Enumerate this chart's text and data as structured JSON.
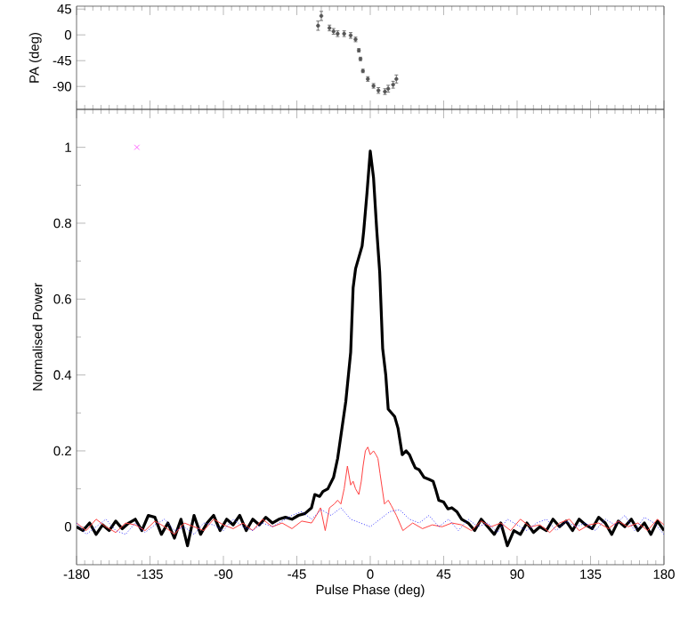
{
  "chart_data": [
    {
      "type": "scatter",
      "ylabel": "PA (deg)",
      "xlim": [
        -180,
        180
      ],
      "ylim": [
        -130,
        50
      ],
      "yticks": [
        -90,
        -45,
        0,
        45
      ],
      "tick_labels": "y",
      "series": [
        {
          "color": "#555555",
          "x": [
            -32,
            -30,
            -25,
            -22.5,
            -20,
            -16,
            -12,
            -9,
            -7,
            -6,
            -4.5,
            -1.5,
            2,
            5,
            9,
            11,
            14,
            16
          ],
          "values": [
            16,
            33,
            12,
            6,
            2,
            2,
            -1,
            -8,
            -27,
            -42,
            -63,
            -77,
            -89,
            -97,
            -99,
            -94,
            -87,
            -77
          ],
          "errors": [
            8,
            8,
            5,
            5,
            5,
            5,
            5,
            4,
            3,
            3,
            3,
            4,
            4,
            5,
            5,
            6,
            6,
            7
          ]
        }
      ]
    },
    {
      "type": "line",
      "xlabel": "Pulse Phase (deg)",
      "ylabel": "Normalised Power",
      "xlim": [
        -180,
        180
      ],
      "xticks": [
        -180,
        -135,
        -90,
        -45,
        0,
        45,
        90,
        135,
        180
      ],
      "ylim": [
        -0.1,
        1.1
      ],
      "yticks": [
        0,
        0.2,
        0.4,
        0.6,
        0.8,
        1
      ],
      "series": [
        {
          "color": "#000000",
          "x": [
            -180,
            -176,
            -172,
            -168,
            -164,
            -160,
            -156,
            -152,
            -148,
            -144,
            -140,
            -136,
            -132,
            -128,
            -124,
            -120,
            -116,
            -112,
            -108,
            -104,
            -100,
            -96,
            -92,
            -88,
            -84,
            -80,
            -76,
            -72,
            -68,
            -64,
            -60,
            -56,
            -52,
            -48,
            -44,
            -40,
            -36,
            -34,
            -31,
            -29,
            -26,
            -22.5,
            -20,
            -18,
            -15,
            -12,
            -10.5,
            -9,
            -7,
            -5,
            -4,
            -2,
            0,
            2,
            4,
            5.8,
            7.6,
            9.5,
            11,
            13,
            15,
            17,
            19.6,
            22,
            24,
            26,
            27.6,
            30,
            33,
            36,
            38.5,
            40,
            42,
            45,
            47.6,
            50,
            53,
            56,
            60,
            64,
            68,
            72,
            76,
            80,
            84,
            88,
            92,
            96,
            100,
            104,
            108,
            112,
            116,
            120,
            124,
            128,
            132,
            136,
            140,
            144,
            148,
            152,
            156,
            160,
            164,
            168,
            172,
            176,
            180
          ],
          "values": [
            0,
            -0.01,
            0.01,
            -0.02,
            0.005,
            -0.01,
            0.015,
            -0.005,
            0.01,
            0.02,
            -0.01,
            0.03,
            0.025,
            -0.02,
            0.01,
            -0.03,
            0.02,
            -0.05,
            0.03,
            -0.02,
            0.01,
            0.03,
            -0.01,
            0.02,
            0.005,
            0.03,
            -0.01,
            0.02,
            0.005,
            0.025,
            0.01,
            0.02,
            0.025,
            0.02,
            0.03,
            0.035,
            0.05,
            0.085,
            0.08,
            0.093,
            0.1,
            0.13,
            0.18,
            0.24,
            0.33,
            0.46,
            0.63,
            0.68,
            0.71,
            0.74,
            0.78,
            0.88,
            0.99,
            0.92,
            0.78,
            0.67,
            0.47,
            0.4,
            0.31,
            0.3,
            0.29,
            0.26,
            0.19,
            0.2,
            0.19,
            0.17,
            0.155,
            0.15,
            0.13,
            0.125,
            0.12,
            0.1,
            0.07,
            0.065,
            0.047,
            0.05,
            0.04,
            0.02,
            0.01,
            -0.01,
            0.02,
            0,
            -0.02,
            0.01,
            -0.05,
            -0.01,
            -0.02,
            0.01,
            -0.015,
            0,
            -0.01,
            0.02,
            0,
            0.015,
            -0.01,
            0.02,
            0.005,
            -0.005,
            0.025,
            0.01,
            -0.02,
            0.015,
            0,
            0.02,
            -0.01,
            0.01,
            -0.02,
            0.015,
            -0.01
          ]
        },
        {
          "color": "#ff4040",
          "x": [
            -180,
            -174,
            -168,
            -162,
            -156,
            -150,
            -144,
            -138,
            -132,
            -126,
            -120,
            -114,
            -108,
            -102,
            -96,
            -90,
            -84,
            -78,
            -72,
            -66,
            -60,
            -54,
            -48,
            -42,
            -36,
            -33,
            -30.5,
            -27.6,
            -25,
            -22,
            -20,
            -18,
            -16,
            -14,
            -12,
            -10.5,
            -9,
            -7,
            -5.5,
            -4.4,
            -3,
            -1.5,
            0,
            2,
            3.5,
            4.7,
            6,
            8.7,
            11,
            13,
            16,
            20,
            23,
            26,
            32,
            38,
            44,
            50,
            56,
            62,
            68,
            74,
            80,
            86,
            92,
            98,
            104,
            110,
            116,
            122,
            128,
            134,
            140,
            146,
            152,
            158,
            164,
            170,
            176,
            180
          ],
          "values": [
            0.01,
            -0.01,
            0.02,
            0,
            -0.015,
            0.01,
            0.005,
            -0.01,
            0.015,
            0,
            -0.02,
            0.01,
            0,
            -0.01,
            0.02,
            0.005,
            -0.005,
            0.01,
            -0.01,
            0.02,
            0,
            0.01,
            -0.005,
            0.015,
            0.01,
            0.03,
            0.05,
            -0.01,
            0.05,
            0.06,
            0.07,
            0.06,
            0.1,
            0.16,
            0.11,
            0.12,
            0.1,
            0.085,
            0.12,
            0.16,
            0.2,
            0.21,
            0.19,
            0.2,
            0.19,
            0.18,
            0.14,
            0.06,
            0.07,
            0.055,
            0.03,
            -0.01,
            0,
            0.01,
            -0.005,
            0.005,
            0,
            0.01,
            0.005,
            -0.01,
            0.015,
            0,
            0.01,
            -0.01,
            0.02,
            0,
            0.005,
            -0.015,
            0.01,
            0.02,
            -0.01,
            0.005,
            0.01,
            -0.005,
            0.015,
            0,
            0.01,
            -0.01,
            0.02,
            0.005
          ]
        },
        {
          "color": "#3333ff",
          "line_style": "dotted",
          "x": [
            -180,
            -174,
            -168,
            -162,
            -156,
            -150,
            -144,
            -138,
            -132,
            -126,
            -120,
            -114,
            -108,
            -102,
            -96,
            -90,
            -84,
            -78,
            -72,
            -66,
            -60,
            -54,
            -48,
            -42,
            -36,
            -30,
            -24,
            -18,
            -12,
            -6,
            0,
            6,
            12,
            18,
            24,
            30,
            36,
            42,
            48,
            54,
            60,
            66,
            72,
            78,
            84,
            90,
            96,
            102,
            108,
            114,
            120,
            126,
            132,
            138,
            144,
            150,
            156,
            162,
            168,
            174,
            180
          ],
          "values": [
            0.01,
            -0.02,
            0,
            0.02,
            -0.01,
            -0.02,
            0.01,
            -0.015,
            0.005,
            0.02,
            -0.01,
            0,
            -0.02,
            0.01,
            0.005,
            -0.01,
            0.02,
            0,
            -0.01,
            0.01,
            0,
            0.015,
            0.03,
            0.04,
            0.02,
            0.045,
            0.03,
            0.05,
            0.02,
            0.01,
            0,
            0.02,
            0.04,
            0.045,
            0.02,
            0.01,
            0.03,
            0,
            0.02,
            -0.01,
            0.02,
            0,
            0.01,
            -0.015,
            0.02,
            0.005,
            -0.01,
            0.01,
            0.02,
            -0.01,
            0.015,
            0,
            0.01,
            -0.01,
            0.02,
            0.005,
            0.03,
            -0.01,
            0.025,
            0.01,
            -0.02
          ]
        },
        {
          "type": "scatter",
          "color": "#ff44ff",
          "marker": "cross",
          "x": [
            -143
          ],
          "values": [
            1
          ]
        }
      ]
    }
  ]
}
